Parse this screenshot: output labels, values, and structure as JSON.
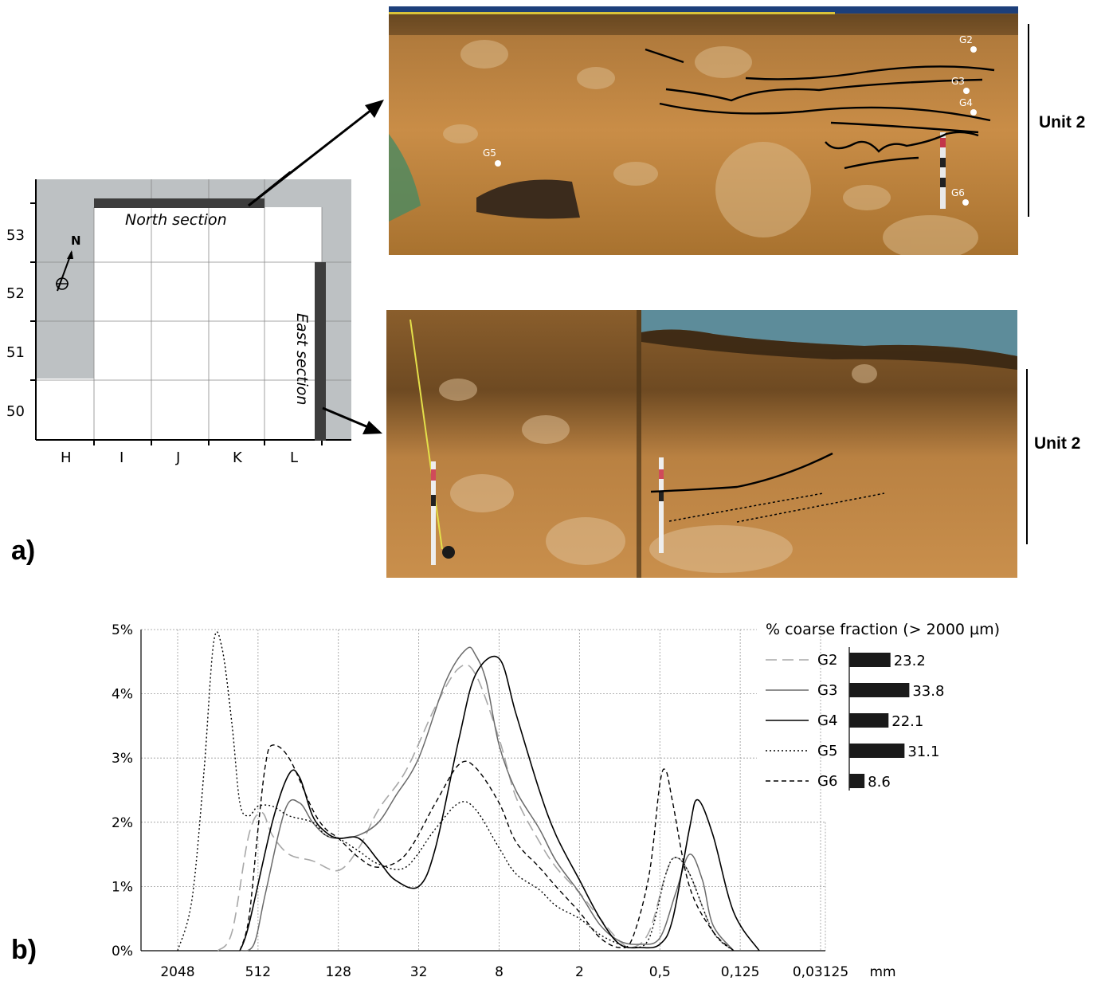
{
  "panel_a": {
    "label": "a)",
    "plan": {
      "row_labels": [
        "53",
        "52",
        "51",
        "50"
      ],
      "col_labels": [
        "H",
        "I",
        "J",
        "K",
        "L"
      ],
      "north_arrow": "N",
      "north_section_label": "North section",
      "east_section_label": "East section"
    },
    "north_photo": {
      "sample_labels": [
        "G2",
        "G3",
        "G4",
        "G5",
        "G6"
      ],
      "unit_label": "Unit 2"
    },
    "east_photo": {
      "unit_label": "Unit 2"
    }
  },
  "panel_b": {
    "label": "b)",
    "legend_title": "% coarse fraction (> 2000 µm)",
    "unit_label": "mm",
    "legend": [
      {
        "name": "G2",
        "value": 23.2,
        "value_label": "23.2",
        "style": "long-dash-grey"
      },
      {
        "name": "G3",
        "value": 33.8,
        "value_label": "33.8",
        "style": "solid-grey"
      },
      {
        "name": "G4",
        "value": 22.1,
        "value_label": "22.1",
        "style": "solid-black"
      },
      {
        "name": "G5",
        "value": 31.1,
        "value_label": "31.1",
        "style": "dotted-black"
      },
      {
        "name": "G6",
        "value": 8.6,
        "value_label": "8.6",
        "style": "short-dash-black"
      }
    ]
  },
  "chart_data": {
    "type": "line",
    "title": "",
    "xlabel": "mm",
    "ylabel": "",
    "x_scale": "log2-reversed",
    "x_ticks": [
      "2048",
      "512",
      "128",
      "32",
      "8",
      "2",
      "0,5",
      "0,125",
      "0,03125"
    ],
    "y_ticks": [
      "0%",
      "1%",
      "2%",
      "3%",
      "4%",
      "5%"
    ],
    "ylim": [
      0,
      5
    ],
    "grid": true,
    "legend_position": "top-right",
    "series": [
      {
        "name": "G2",
        "x": [
          1024,
          800,
          600,
          480,
          400,
          300,
          200,
          128,
          90,
          64,
          40,
          24,
          16,
          12,
          8,
          6,
          4,
          3,
          2,
          1.4,
          1,
          0.8,
          0.6,
          0.45,
          0.38,
          0.3,
          0.2,
          0.14
        ],
        "y": [
          0,
          0.3,
          1.8,
          2.15,
          1.8,
          1.5,
          1.4,
          1.25,
          1.6,
          2.2,
          2.8,
          3.8,
          4.4,
          4.3,
          3.3,
          2.4,
          1.7,
          1.3,
          0.9,
          0.5,
          0.15,
          0.05,
          0.3,
          1.2,
          1.45,
          1.2,
          0.3,
          0
        ]
      },
      {
        "name": "G3",
        "x": [
          700,
          550,
          450,
          320,
          250,
          200,
          160,
          128,
          90,
          64,
          48,
          32,
          20,
          14,
          12,
          10,
          8,
          6,
          4,
          3,
          2,
          1.4,
          1,
          0.7,
          0.5,
          0.38,
          0.3,
          0.24,
          0.2,
          0.14
        ],
        "y": [
          0,
          0.1,
          0.9,
          2.2,
          2.3,
          2.0,
          1.8,
          1.75,
          1.8,
          2.0,
          2.4,
          3.0,
          4.2,
          4.7,
          4.6,
          4.2,
          3.2,
          2.5,
          1.9,
          1.4,
          0.9,
          0.4,
          0.15,
          0.1,
          0.2,
          0.9,
          1.5,
          1.1,
          0.4,
          0
        ]
      },
      {
        "name": "G4",
        "x": [
          700,
          600,
          400,
          300,
          250,
          200,
          160,
          128,
          90,
          64,
          48,
          32,
          24,
          16,
          12,
          8,
          6,
          4,
          3,
          2,
          1.4,
          1,
          0.7,
          0.5,
          0.4,
          0.3,
          0.26,
          0.2,
          0.14,
          0.09
        ],
        "y": [
          0,
          0.4,
          2.0,
          2.75,
          2.7,
          2.1,
          1.85,
          1.75,
          1.75,
          1.4,
          1.1,
          1.0,
          1.6,
          3.3,
          4.3,
          4.55,
          3.7,
          2.5,
          1.8,
          1.1,
          0.5,
          0.1,
          0.05,
          0.1,
          0.5,
          1.9,
          2.35,
          1.8,
          0.6,
          0
        ]
      },
      {
        "name": "G5",
        "x": [
          2048,
          1600,
          1300,
          1100,
          950,
          800,
          700,
          600,
          512,
          400,
          300,
          200,
          160,
          128,
          90,
          64,
          40,
          24,
          16,
          12,
          8,
          6,
          4,
          3,
          2,
          1.4,
          1,
          0.8,
          0.6,
          0.45,
          0.38,
          0.3,
          0.2,
          0.14
        ],
        "y": [
          0,
          0.8,
          2.8,
          4.8,
          4.7,
          3.5,
          2.3,
          2.1,
          2.25,
          2.25,
          2.1,
          2.0,
          1.8,
          1.75,
          1.55,
          1.35,
          1.3,
          1.9,
          2.3,
          2.2,
          1.6,
          1.2,
          0.95,
          0.7,
          0.5,
          0.25,
          0.1,
          0.05,
          0.2,
          1.2,
          1.45,
          1.2,
          0.3,
          0
        ]
      },
      {
        "name": "G6",
        "x": [
          700,
          600,
          512,
          450,
          400,
          300,
          200,
          160,
          128,
          90,
          64,
          40,
          24,
          16,
          12,
          8,
          6,
          4,
          3,
          2,
          1.4,
          1,
          0.8,
          0.6,
          0.5,
          0.45,
          0.4,
          0.3,
          0.2,
          0.14
        ],
        "y": [
          0,
          0.5,
          1.9,
          2.9,
          3.2,
          3.0,
          2.2,
          1.9,
          1.75,
          1.45,
          1.3,
          1.5,
          2.3,
          2.9,
          2.85,
          2.3,
          1.7,
          1.3,
          1.0,
          0.6,
          0.2,
          0.05,
          0.2,
          1.2,
          2.6,
          2.8,
          2.3,
          1.0,
          0.3,
          0
        ]
      }
    ]
  }
}
